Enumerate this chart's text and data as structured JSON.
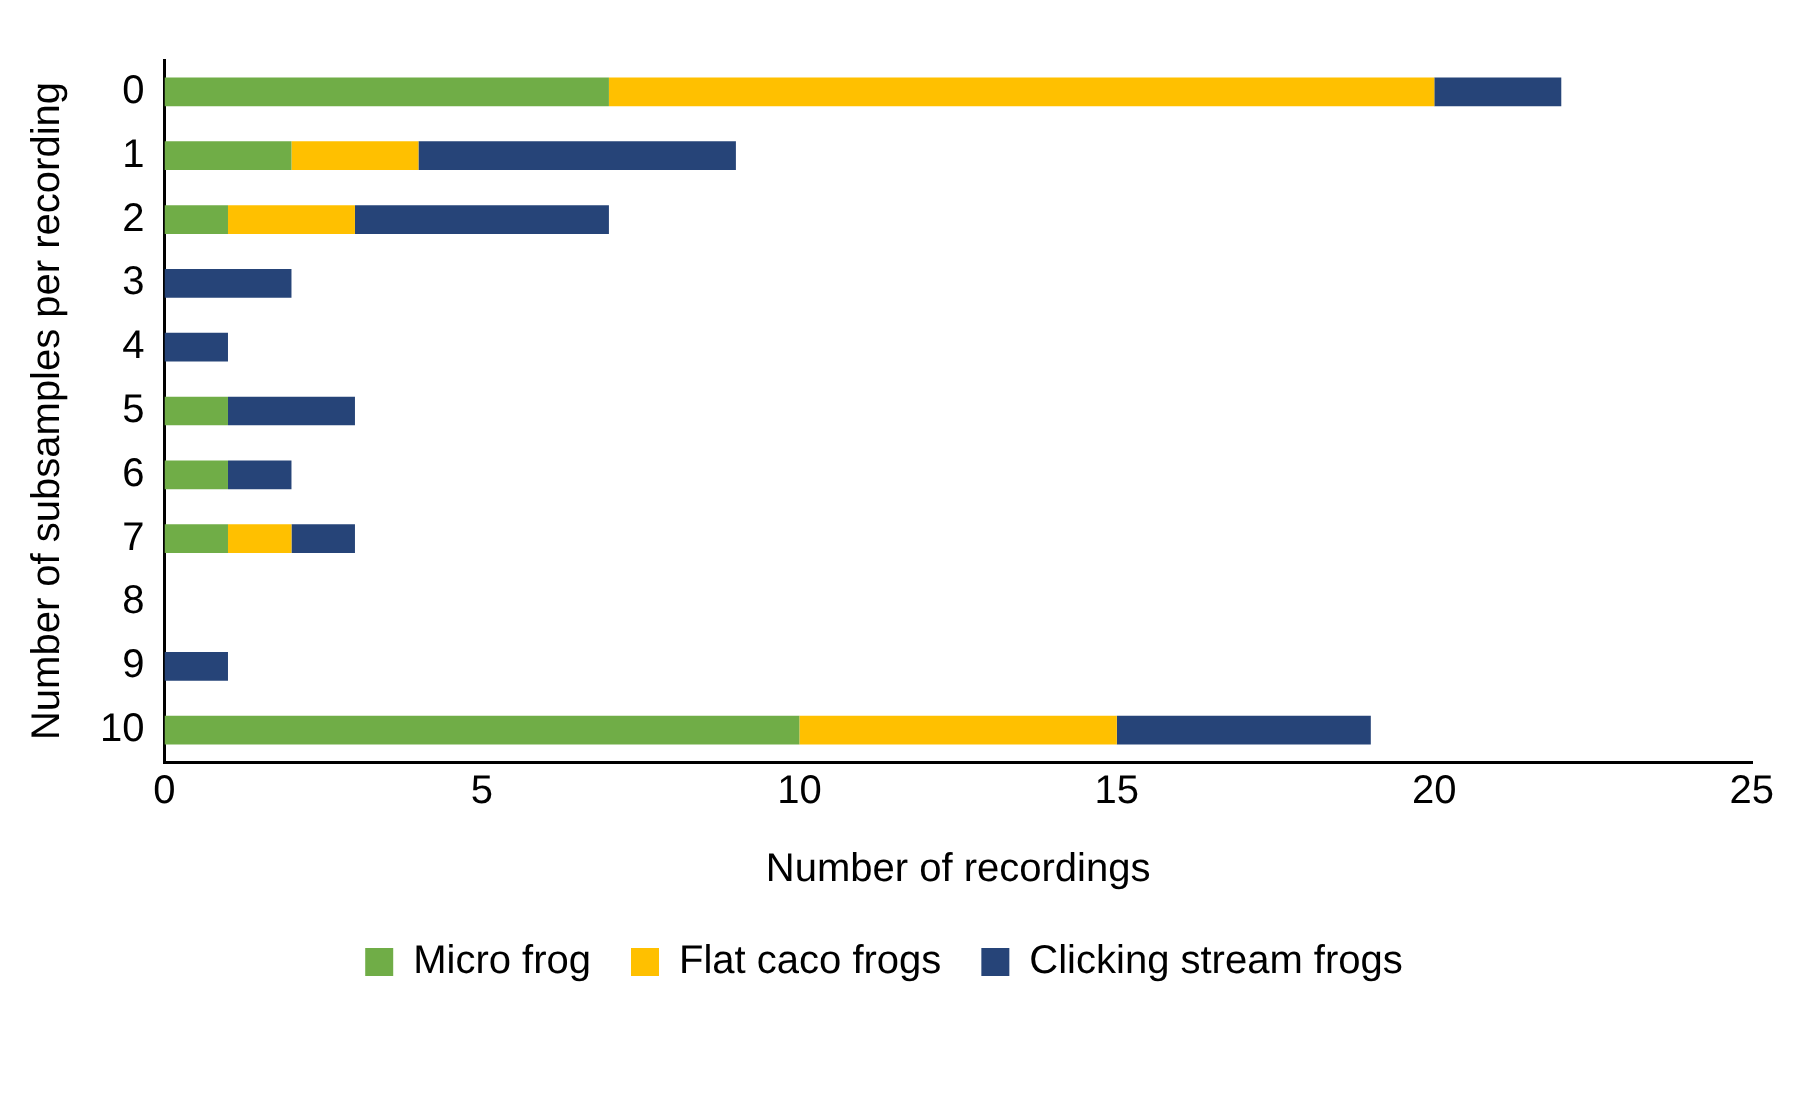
{
  "chart_data": {
    "type": "bar",
    "orientation": "horizontal",
    "stacked": true,
    "xlabel": "Number of recordings",
    "ylabel": "Number of subsamples per recording",
    "categories": [
      "0",
      "1",
      "2",
      "3",
      "4",
      "5",
      "6",
      "7",
      "8",
      "9",
      "10"
    ],
    "series": [
      {
        "name": "Micro frog",
        "color": "#70ad47",
        "values": [
          7,
          2,
          1,
          0,
          0,
          1,
          1,
          1,
          0,
          0,
          10
        ]
      },
      {
        "name": "Flat caco frogs",
        "color": "#ffc000",
        "values": [
          13,
          2,
          2,
          0,
          0,
          0,
          0,
          1,
          0,
          0,
          5
        ]
      },
      {
        "name": "Clicking stream frogs",
        "color": "#264478",
        "values": [
          2,
          5,
          4,
          2,
          1,
          2,
          1,
          1,
          0,
          1,
          4
        ]
      }
    ],
    "xlim": [
      0,
      25
    ],
    "xticks": [
      0,
      5,
      10,
      15,
      20,
      25
    ],
    "grid": false,
    "legend": "bottom"
  }
}
